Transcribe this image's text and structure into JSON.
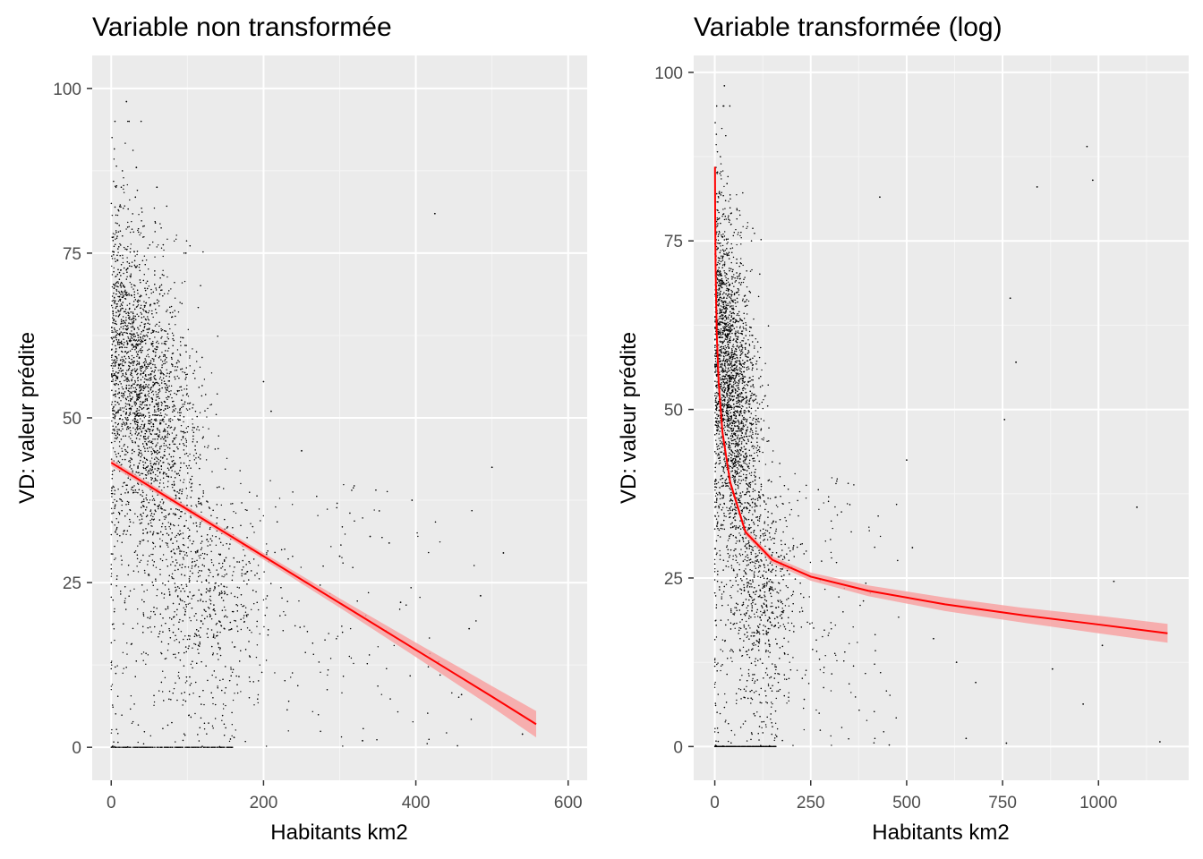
{
  "chart_data": [
    {
      "type": "scatter",
      "title": "Variable non transformée",
      "xlabel": "Habitants km2",
      "ylabel": "VD: valeur prédite",
      "xlim": [
        -25,
        625
      ],
      "ylim": [
        -5,
        105
      ],
      "x_ticks": [
        0,
        200,
        400,
        600
      ],
      "y_ticks": [
        0,
        25,
        50,
        75,
        100
      ],
      "grid": true,
      "point_color": "#000000",
      "scatter_outliers": [
        {
          "x": 20,
          "y": 98
        },
        {
          "x": 425,
          "y": 81
        },
        {
          "x": 500,
          "y": 42.5
        },
        {
          "x": 515,
          "y": 29.5
        },
        {
          "x": 485,
          "y": 23
        },
        {
          "x": 430,
          "y": 13
        },
        {
          "x": 460,
          "y": 8
        },
        {
          "x": 395,
          "y": 37.5
        },
        {
          "x": 365,
          "y": 31
        },
        {
          "x": 340,
          "y": 32
        },
        {
          "x": 330,
          "y": 1
        },
        {
          "x": 300,
          "y": 29
        },
        {
          "x": 250,
          "y": 45
        },
        {
          "x": 200,
          "y": 55.5
        },
        {
          "x": 210,
          "y": 51
        },
        {
          "x": 98,
          "y": 75
        },
        {
          "x": 60,
          "y": 85
        },
        {
          "x": 33,
          "y": 88
        },
        {
          "x": 540,
          "y": 2
        },
        {
          "x": 470,
          "y": 18
        },
        {
          "x": 380,
          "y": 22
        }
      ],
      "series": [
        {
          "fit": "linear",
          "x": [
            0,
            100,
            200,
            300,
            400,
            500,
            558
          ],
          "y": [
            43.2,
            36.1,
            29.0,
            21.9,
            14.8,
            7.7,
            3.5
          ],
          "ci_half_width": [
            0.5,
            0.45,
            0.5,
            0.7,
            1.1,
            1.6,
            2.0
          ]
        }
      ]
    },
    {
      "type": "scatter",
      "title": "Variable transformée (log)",
      "xlabel": "Habitants km2",
      "ylabel": "VD: valeur prédite",
      "xlim": [
        -55,
        1235
      ],
      "ylim": [
        -5,
        102.5
      ],
      "x_ticks": [
        0,
        250,
        500,
        750,
        1000
      ],
      "y_ticks": [
        0,
        25,
        50,
        75,
        100
      ],
      "grid": true,
      "point_color": "#000000",
      "scatter_outliers": [
        {
          "x": 25,
          "y": 98
        },
        {
          "x": 1160,
          "y": 0.7
        },
        {
          "x": 1100,
          "y": 35.5
        },
        {
          "x": 970,
          "y": 89
        },
        {
          "x": 985,
          "y": 84
        },
        {
          "x": 840,
          "y": 83
        },
        {
          "x": 770,
          "y": 66.5
        },
        {
          "x": 785,
          "y": 57
        },
        {
          "x": 755,
          "y": 48.5
        },
        {
          "x": 500,
          "y": 42.5
        },
        {
          "x": 515,
          "y": 29.5
        },
        {
          "x": 430,
          "y": 81.5
        },
        {
          "x": 630,
          "y": 12.5
        },
        {
          "x": 680,
          "y": 9.5
        },
        {
          "x": 760,
          "y": 0.5
        },
        {
          "x": 1010,
          "y": 15
        },
        {
          "x": 1040,
          "y": 24.5
        },
        {
          "x": 880,
          "y": 11.5
        },
        {
          "x": 655,
          "y": 1.2
        },
        {
          "x": 960,
          "y": 6.3
        },
        {
          "x": 570,
          "y": 16
        }
      ],
      "series": [
        {
          "fit": "log",
          "x": [
            0.5,
            1,
            2,
            5,
            10,
            20,
            40,
            80,
            150,
            250,
            400,
            600,
            800,
            1000,
            1180
          ],
          "y": [
            86.0,
            78.6,
            71.2,
            61.4,
            54.0,
            46.6,
            39.2,
            31.8,
            27.7,
            25.2,
            23.1,
            21.1,
            19.5,
            18.1,
            16.8
          ],
          "ci_half_width": [
            3.0,
            2.6,
            2.2,
            1.6,
            1.2,
            0.9,
            0.6,
            0.5,
            0.5,
            0.6,
            0.8,
            1.0,
            1.1,
            1.3,
            1.4
          ]
        }
      ]
    }
  ]
}
